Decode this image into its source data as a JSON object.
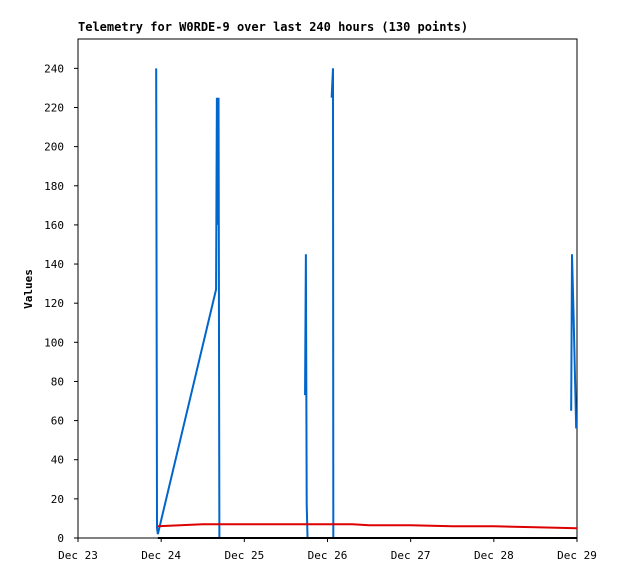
{
  "chart_data": {
    "type": "line",
    "title": "Telemetry for W0RDE-9 over last 240 hours (130 points)",
    "y_label": "Values",
    "xlim": [
      0,
      6
    ],
    "ylim": [
      0,
      255
    ],
    "xticks": [
      {
        "value": 0,
        "label": "Dec 23"
      },
      {
        "value": 1,
        "label": "Dec 24"
      },
      {
        "value": 2,
        "label": "Dec 25"
      },
      {
        "value": 3,
        "label": "Dec 26"
      },
      {
        "value": 4,
        "label": "Dec 27"
      },
      {
        "value": 5,
        "label": "Dec 28"
      },
      {
        "value": 6,
        "label": "Dec 29"
      }
    ],
    "yticks": [
      0,
      20,
      40,
      60,
      80,
      100,
      120,
      140,
      160,
      180,
      200,
      220,
      240
    ],
    "series": [
      {
        "color": "#0066cc",
        "x": [
          0.94,
          0.95,
          0.96,
          1.66,
          1.67,
          1.68,
          1.69,
          1.7,
          null,
          2.73,
          2.74,
          2.75,
          2.76,
          null,
          3.05,
          3.066,
          3.07,
          null,
          5.93,
          5.94,
          5.96,
          5.99
        ],
        "values": [
          240,
          5,
          2,
          127,
          225,
          160,
          225,
          0,
          null,
          73,
          145,
          17,
          0,
          null,
          225,
          240,
          0,
          null,
          65,
          145,
          112,
          56
        ]
      },
      {
        "color": "#dd0000",
        "x": [
          0.96,
          1.5,
          2,
          3,
          3.3,
          3.5,
          4,
          4.5,
          5,
          5.5,
          6
        ],
        "values": [
          6,
          7,
          7,
          7,
          7,
          6.5,
          6.5,
          6,
          6,
          5.5,
          5
        ]
      },
      {
        "color": "#000000",
        "x": [
          0.96,
          6
        ],
        "values": [
          0,
          0
        ]
      }
    ]
  }
}
